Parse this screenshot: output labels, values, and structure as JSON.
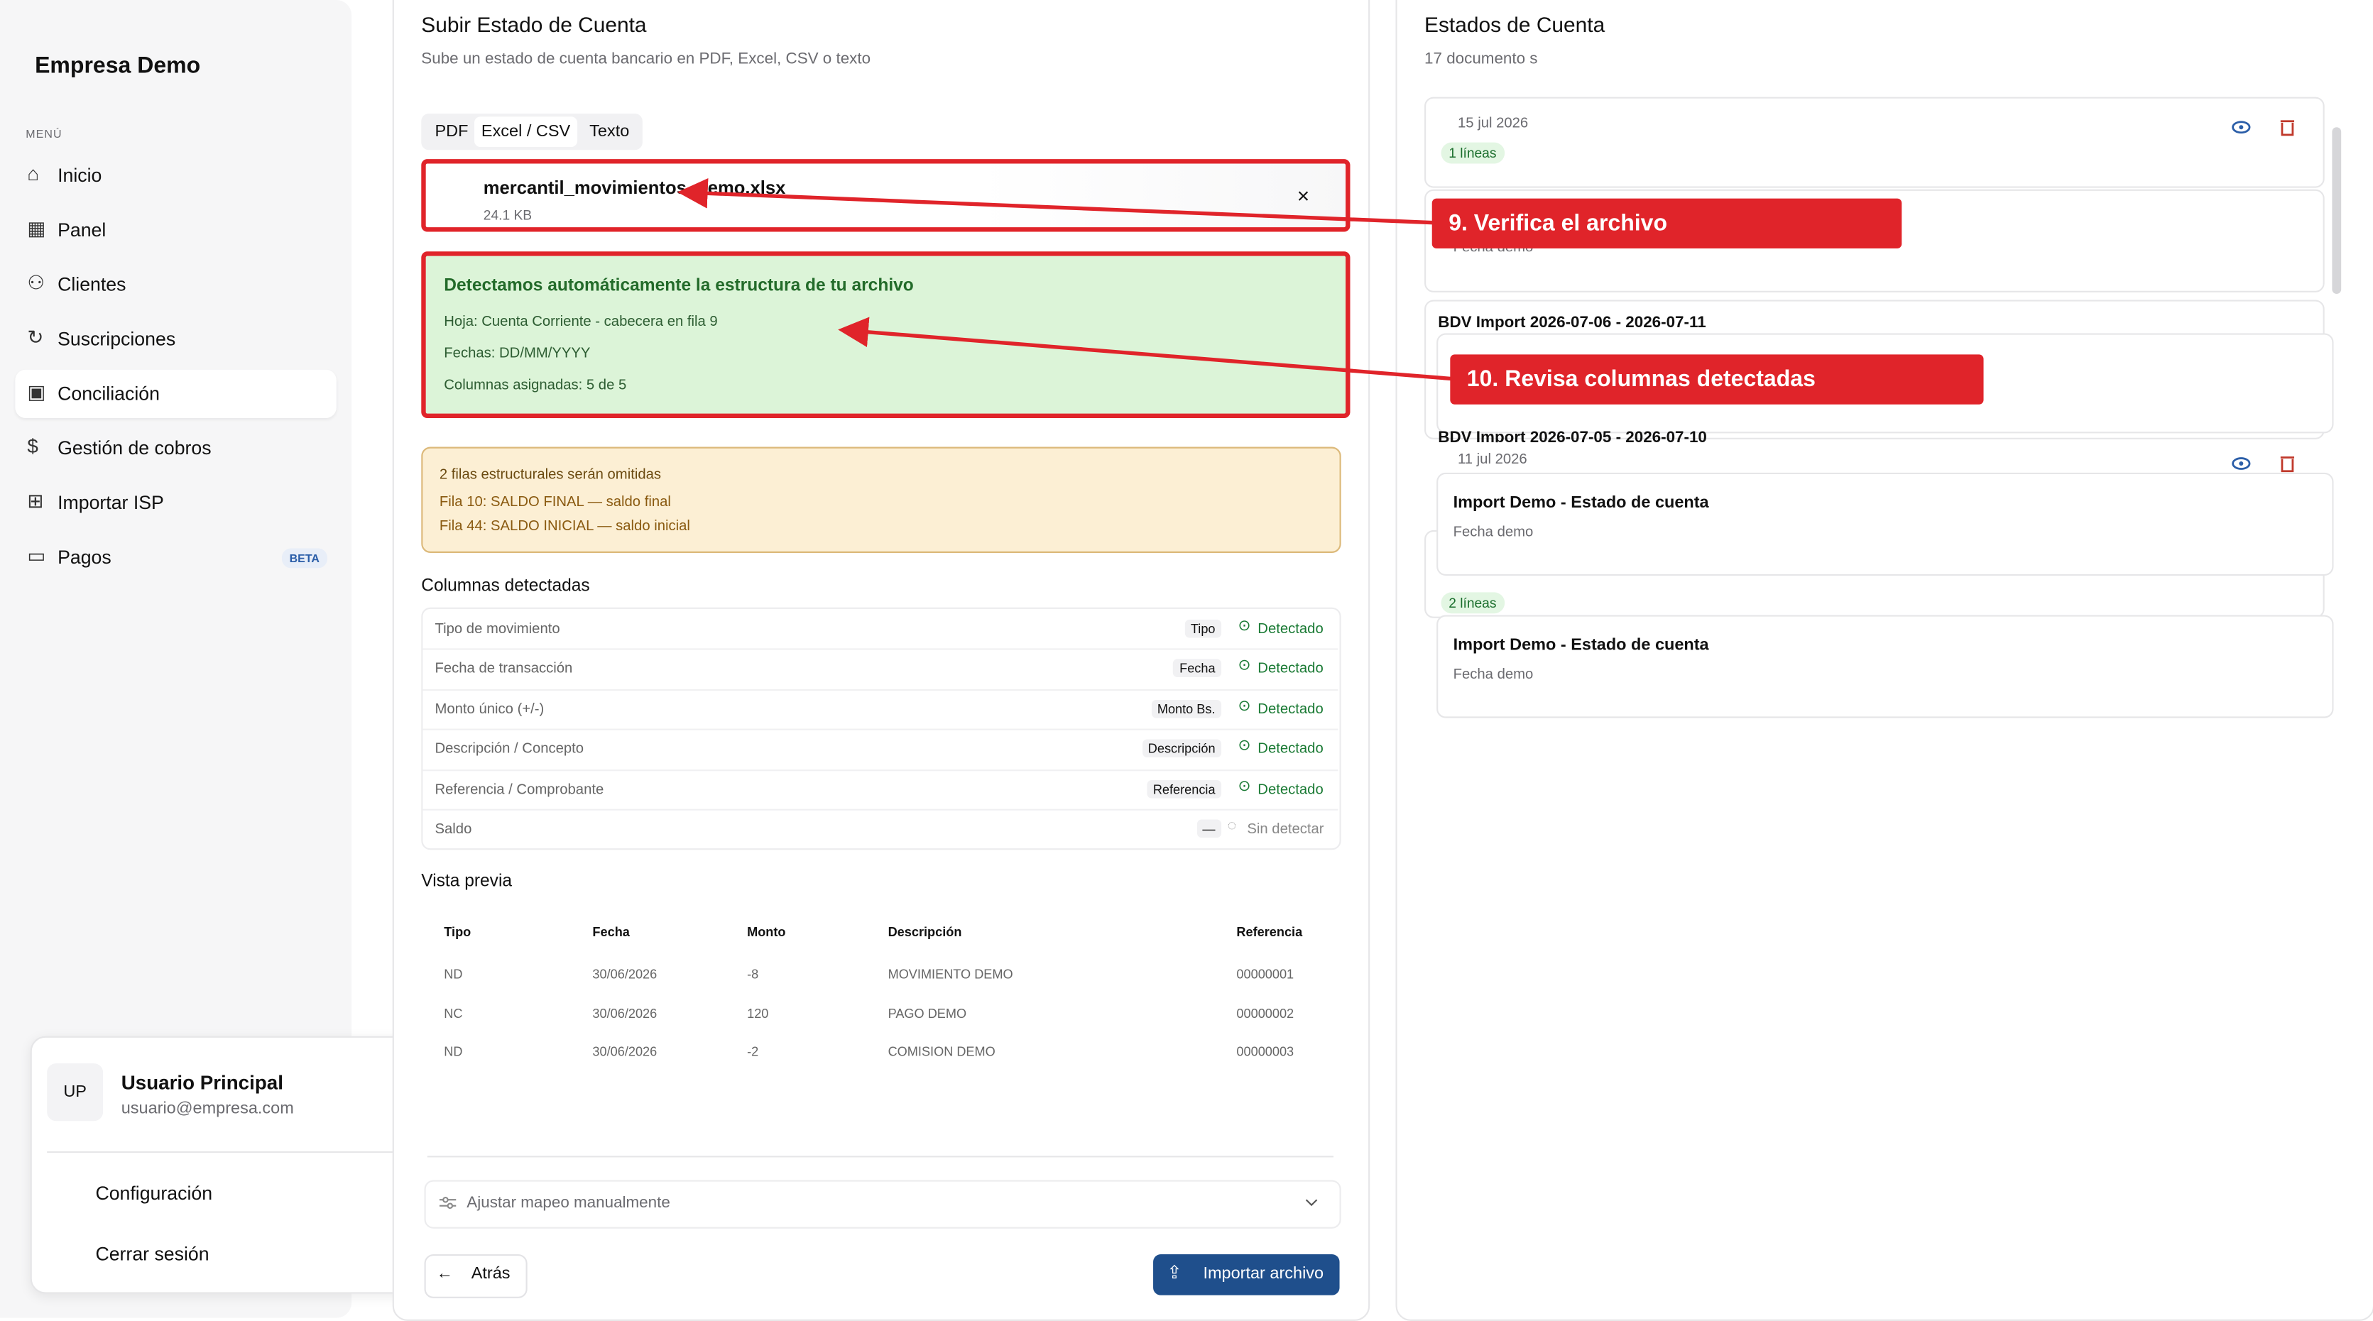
{
  "sidebar": {
    "company": "Empresa Demo",
    "menu_label": "MENÚ",
    "nav": [
      "Inicio",
      "Panel",
      "Clientes",
      "Suscripciones",
      "Conciliación",
      "Gestión de cobros",
      "Importar ISP",
      "Pagos"
    ],
    "beta": "BETA"
  },
  "user": {
    "initials": "UP",
    "name": "Usuario Principal",
    "email": "usuario@empresa.com",
    "menu": [
      "Configuración",
      "Cerrar sesión"
    ]
  },
  "upload": {
    "title": "Subir Estado de Cuenta",
    "subtitle": "Sube un estado de cuenta bancario en PDF, Excel, CSV o texto",
    "tabs": [
      "PDF",
      "Excel / CSV",
      "Texto"
    ],
    "file": {
      "name": "mercantil_movimientos_demo.xlsx",
      "size": "24.1 KB"
    },
    "detection": {
      "title": "Detectamos automáticamente la estructura de tu archivo",
      "lines": [
        "Hoja: Cuenta Corriente - cabecera en fila 9",
        "Fechas: DD/MM/YYYY",
        "Columnas asignadas: 5 de 5"
      ]
    },
    "warning": {
      "title": "2 filas estructurales serán omitidas",
      "lines": [
        "Fila 10: SALDO FINAL — saldo final",
        "Fila 44: SALDO INICIAL — saldo inicial"
      ]
    },
    "columns_title": "Columnas detectadas",
    "columns": [
      {
        "field": "Tipo de movimiento",
        "source": "Tipo",
        "status": "Detectado"
      },
      {
        "field": "Fecha de transacción",
        "source": "Fecha",
        "status": "Detectado"
      },
      {
        "field": "Monto único (+/-)",
        "source": "Monto Bs.",
        "status": "Detectado"
      },
      {
        "field": "Descripción / Concepto",
        "source": "Descripción",
        "status": "Detectado"
      },
      {
        "field": "Referencia / Comprobante",
        "source": "Referencia",
        "status": "Detectado"
      },
      {
        "field": "Saldo",
        "source": "—",
        "status": "Sin detectar"
      }
    ],
    "preview_title": "Vista previa",
    "preview": {
      "headers": [
        "Tipo",
        "Fecha",
        "Monto",
        "Descripción",
        "Referencia"
      ],
      "rows": [
        [
          "ND",
          "30/06/2026",
          "-8",
          "MOVIMIENTO DEMO",
          "00000001"
        ],
        [
          "NC",
          "30/06/2026",
          "120",
          "PAGO DEMO",
          "00000002"
        ],
        [
          "ND",
          "30/06/2026",
          "-2",
          "COMISION DEMO",
          "00000003"
        ]
      ]
    },
    "mapping": "Ajustar mapeo manualmente",
    "back": "Atrás",
    "import": "Importar archivo"
  },
  "statements": {
    "title": "Estados de Cuenta",
    "count": "17 documento s",
    "items": [
      {
        "date": "15 jul 2026",
        "lines": "1 líneas",
        "sub": "Fecha demo"
      },
      {
        "name": "BDV Import 2026-07-06 - 2026-07-11"
      },
      {
        "name": "BDV Import 2026-07-05 - 2026-07-10",
        "date": "11 jul 2026",
        "title": "Import Demo - Estado de cuenta",
        "sub": "Fecha demo"
      },
      {
        "lines": "2 líneas",
        "title": "Import Demo - Estado de cuenta",
        "sub": "Fecha demo"
      }
    ]
  },
  "annotations": [
    "9. Verifica el archivo",
    "10. Revisa columnas detectadas"
  ]
}
